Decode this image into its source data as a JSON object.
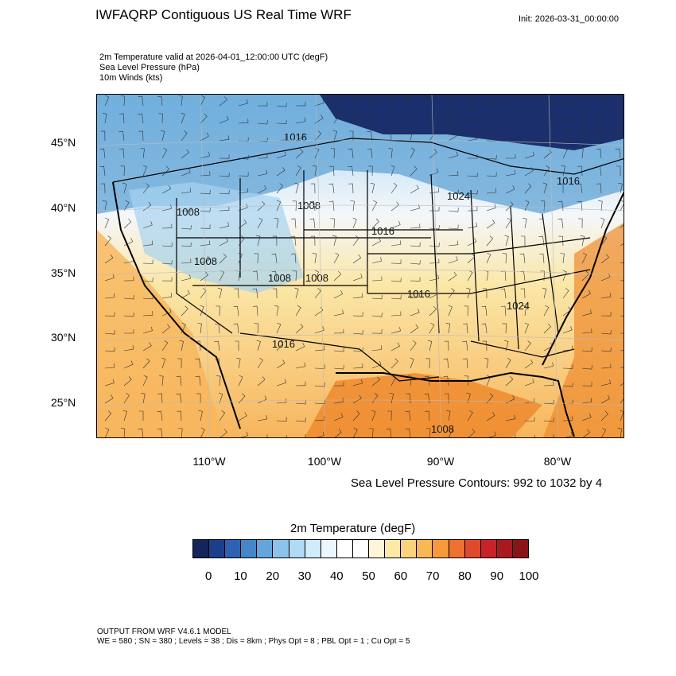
{
  "header": {
    "title": "IWFAQRP Contiguous US Real Time WRF",
    "init": "Init: 2026-03-31_00:00:00"
  },
  "variables": {
    "temperature": "2m Temperature valid at 2026-04-01_12:00:00 UTC   (degF)",
    "pressure": "Sea Level Pressure   (hPa)",
    "winds": "10m Winds   (kts)"
  },
  "map": {
    "lat_labels": [
      "45°N",
      "40°N",
      "35°N",
      "30°N",
      "25°N"
    ],
    "lon_labels": [
      "110°W",
      "100°W",
      "90°W",
      "80°W"
    ],
    "isobar_labels": [
      "1016",
      "1024",
      "1016",
      "1008",
      "1008",
      "1016",
      "1016",
      "1008",
      "1008",
      "1008",
      "1016",
      "1024",
      "1008"
    ],
    "colors": {
      "cold_deep": "#1a2f6b",
      "cold": "#5fa3d6",
      "cool": "#a6d3f0",
      "neutral": "#f4f7fa",
      "mild": "#fbe7a8",
      "warm": "#f7b55c",
      "hot": "#ee8a2e"
    }
  },
  "contour_info": "Sea Level Pressure Contours: 992 to 1032 by 4",
  "colorbar": {
    "title": "2m Temperature  (degF)",
    "colors": [
      "#13255a",
      "#1d3f8a",
      "#2e62b0",
      "#4387c9",
      "#63a6dc",
      "#8cc3ea",
      "#b1dbf5",
      "#d0ebfa",
      "#ebf6fd",
      "#ffffff",
      "#ffffff",
      "#fff6da",
      "#fde8a8",
      "#fcd27c",
      "#fab855",
      "#f6993a",
      "#ee7132",
      "#e04a2c",
      "#c82427",
      "#a91a1e",
      "#8b1417"
    ],
    "ticks": [
      "0",
      "10",
      "20",
      "30",
      "40",
      "50",
      "60",
      "70",
      "80",
      "90",
      "100"
    ]
  },
  "footer": {
    "model": "OUTPUT FROM WRF V4.6.1 MODEL",
    "details": "WE = 580 ; SN = 380 ; Levels = 38 ; Dis = 8km ; Phys Opt = 8 ; PBL Opt = 1 ; Cu Opt = 5"
  }
}
